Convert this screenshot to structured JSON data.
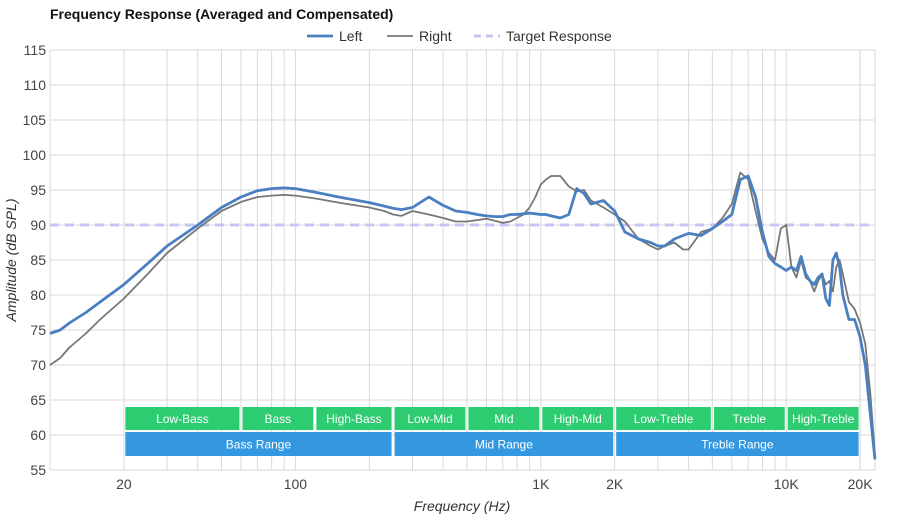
{
  "chart_data": {
    "type": "line",
    "title": "Frequency Response (Averaged and Compensated)",
    "xlabel": "Frequency (Hz)",
    "ylabel": "Amplitude (dB SPL)",
    "xscale": "log",
    "xlim": [
      10,
      23000
    ],
    "ylim": [
      55,
      115
    ],
    "xticks": [
      {
        "value": 20,
        "label": "20"
      },
      {
        "value": 100,
        "label": "100"
      },
      {
        "value": 1000,
        "label": "1K"
      },
      {
        "value": 2000,
        "label": "2K"
      },
      {
        "value": 10000,
        "label": "10K"
      },
      {
        "value": 20000,
        "label": "20K"
      }
    ],
    "yticks": [
      55,
      60,
      65,
      70,
      75,
      80,
      85,
      90,
      95,
      100,
      105,
      110,
      115
    ],
    "grid": true,
    "legend_position": "top-center",
    "series": [
      {
        "name": "Left",
        "color": "#4a7fc1",
        "x": [
          10,
          11,
          12,
          14,
          16,
          20,
          25,
          30,
          40,
          50,
          60,
          70,
          80,
          90,
          100,
          120,
          150,
          200,
          230,
          250,
          270,
          300,
          350,
          400,
          450,
          500,
          550,
          600,
          650,
          700,
          750,
          800,
          850,
          900,
          950,
          1000,
          1050,
          1100,
          1200,
          1300,
          1400,
          1500,
          1600,
          1800,
          2000,
          2200,
          2500,
          2800,
          3000,
          3200,
          3500,
          3800,
          4000,
          4500,
          5000,
          5500,
          6000,
          6500,
          7000,
          7500,
          8000,
          8500,
          9000,
          9500,
          10000,
          10500,
          11000,
          11500,
          12000,
          12500,
          13000,
          13500,
          14000,
          14500,
          15000,
          15500,
          16000,
          16500,
          17000,
          18000,
          19000,
          20000,
          21000,
          22000,
          23000
        ],
        "values": [
          74.5,
          75,
          76,
          77.5,
          79,
          81.5,
          84.5,
          87,
          90,
          92.5,
          94,
          94.9,
          95.2,
          95.3,
          95.2,
          94.7,
          94,
          93.2,
          92.7,
          92.4,
          92.2,
          92.5,
          94,
          92.8,
          92,
          91.8,
          91.5,
          91.3,
          91.2,
          91.2,
          91.5,
          91.5,
          91.6,
          91.7,
          91.6,
          91.5,
          91.5,
          91.3,
          91,
          91.5,
          95.2,
          94.5,
          93,
          93.5,
          92,
          89,
          88,
          87.5,
          87,
          87,
          88,
          88.5,
          88.8,
          88.5,
          89.5,
          90.5,
          91.5,
          96.5,
          97,
          94,
          89,
          85.5,
          84.5,
          84,
          83.5,
          84,
          83.5,
          85.5,
          83,
          82,
          81.5,
          82.5,
          83,
          79.5,
          78.5,
          85,
          86,
          84,
          80,
          76.5,
          76.5,
          74,
          70,
          63,
          56.5
        ]
      },
      {
        "name": "Right",
        "color": "#777777",
        "x": [
          10,
          11,
          12,
          14,
          16,
          20,
          25,
          30,
          40,
          50,
          60,
          70,
          80,
          90,
          100,
          120,
          150,
          200,
          230,
          250,
          270,
          300,
          350,
          400,
          450,
          500,
          550,
          600,
          650,
          700,
          750,
          800,
          850,
          900,
          950,
          1000,
          1050,
          1100,
          1200,
          1300,
          1400,
          1500,
          1600,
          1800,
          2000,
          2200,
          2500,
          2800,
          3000,
          3200,
          3500,
          3800,
          4000,
          4500,
          5000,
          5500,
          6000,
          6500,
          7000,
          7500,
          8000,
          8500,
          9000,
          9500,
          10000,
          10500,
          11000,
          11500,
          12000,
          12500,
          13000,
          13500,
          14000,
          14500,
          15000,
          15500,
          16000,
          16500,
          17000,
          18000,
          19000,
          20000,
          21000,
          22000,
          23000
        ],
        "values": [
          70,
          71,
          72.5,
          74.5,
          76.5,
          79.5,
          83,
          86,
          89.5,
          92,
          93.3,
          94,
          94.2,
          94.3,
          94.2,
          93.8,
          93.2,
          92.5,
          92,
          91.5,
          91.3,
          92,
          91.5,
          91,
          90.5,
          90.5,
          90.7,
          90.9,
          90.6,
          90.3,
          90.5,
          91,
          91.5,
          92.5,
          94,
          95.8,
          96.5,
          97,
          97,
          95.5,
          94.8,
          95,
          93.5,
          92.5,
          91.5,
          90.5,
          88,
          87,
          86.5,
          87,
          87.5,
          86.5,
          86.5,
          89,
          89.5,
          91,
          93,
          97.5,
          96.5,
          92,
          88,
          86,
          85,
          89.5,
          90,
          84,
          82.5,
          85,
          82.5,
          82,
          80.5,
          82,
          83,
          81.5,
          82,
          80.5,
          84,
          85,
          83,
          79,
          78,
          76,
          73,
          66,
          57
        ]
      },
      {
        "name": "Target Response",
        "color": "#c4c6f5",
        "x": [
          10,
          23000
        ],
        "values": [
          90,
          90
        ]
      }
    ],
    "bands_top": [
      {
        "label": "Low-Bass",
        "from": 20,
        "to": 60
      },
      {
        "label": "Bass",
        "from": 60,
        "to": 120
      },
      {
        "label": "High-Bass",
        "from": 120,
        "to": 250
      },
      {
        "label": "Low-Mid",
        "from": 250,
        "to": 500
      },
      {
        "label": "Mid",
        "from": 500,
        "to": 1000
      },
      {
        "label": "High-Mid",
        "from": 1000,
        "to": 2000
      },
      {
        "label": "Low-Treble",
        "from": 2000,
        "to": 5000
      },
      {
        "label": "Treble",
        "from": 5000,
        "to": 10000
      },
      {
        "label": "High-Treble",
        "from": 10000,
        "to": 20000
      }
    ],
    "bands_bottom": [
      {
        "label": "Bass Range",
        "from": 20,
        "to": 250
      },
      {
        "label": "Mid Range",
        "from": 250,
        "to": 2000
      },
      {
        "label": "Treble Range",
        "from": 2000,
        "to": 20000
      }
    ],
    "band_colors": {
      "top": "#2ecc71",
      "bottom": "#3398e0"
    }
  }
}
